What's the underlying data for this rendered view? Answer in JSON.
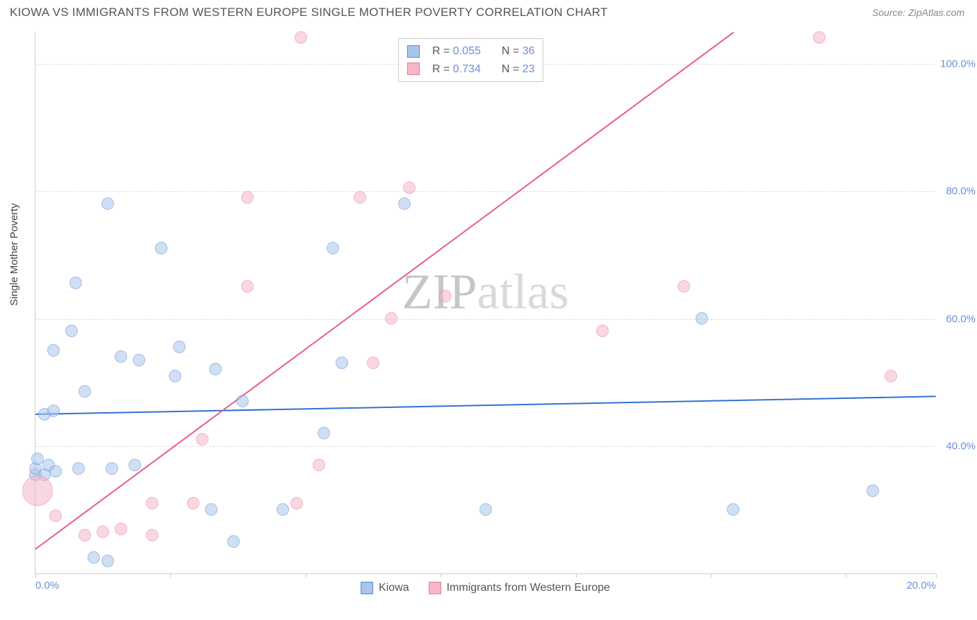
{
  "header": {
    "title": "KIOWA VS IMMIGRANTS FROM WESTERN EUROPE SINGLE MOTHER POVERTY CORRELATION CHART",
    "source": "Source: ZipAtlas.com"
  },
  "axes": {
    "y_label": "Single Mother Poverty",
    "x_min": 0,
    "x_max": 20,
    "y_min": 20,
    "y_max": 105,
    "y_ticks": [
      40,
      60,
      80,
      100
    ],
    "y_tick_labels": [
      "40.0%",
      "60.0%",
      "80.0%",
      "100.0%"
    ],
    "x_ticks": [
      0,
      3,
      6,
      9,
      12,
      15,
      18,
      20
    ],
    "x_tick_labels_shown": {
      "0": "0.0%",
      "20": "20.0%"
    }
  },
  "series": [
    {
      "name": "Kiowa",
      "fill": "#a8c5ec",
      "stroke": "#5a8ad0",
      "fill_opacity": 0.55,
      "line_color": "#2f72d4",
      "R": "0.055",
      "N": "36",
      "trend": {
        "x1": 0,
        "y1": 45.2,
        "x2": 20,
        "y2": 48.0
      },
      "marker_r": 9,
      "points": [
        {
          "x": 0.0,
          "y": 35.5
        },
        {
          "x": 0.0,
          "y": 36.5
        },
        {
          "x": 0.05,
          "y": 38
        },
        {
          "x": 0.2,
          "y": 35.5
        },
        {
          "x": 0.3,
          "y": 37
        },
        {
          "x": 0.2,
          "y": 45
        },
        {
          "x": 0.4,
          "y": 45.5
        },
        {
          "x": 0.4,
          "y": 55
        },
        {
          "x": 0.45,
          "y": 36
        },
        {
          "x": 0.8,
          "y": 58
        },
        {
          "x": 0.9,
          "y": 65.5
        },
        {
          "x": 0.95,
          "y": 36.5
        },
        {
          "x": 1.1,
          "y": 48.5
        },
        {
          "x": 1.3,
          "y": 22.5
        },
        {
          "x": 1.6,
          "y": 22
        },
        {
          "x": 1.6,
          "y": 78
        },
        {
          "x": 1.7,
          "y": 36.5
        },
        {
          "x": 1.9,
          "y": 54
        },
        {
          "x": 2.2,
          "y": 37
        },
        {
          "x": 2.3,
          "y": 53.5
        },
        {
          "x": 2.8,
          "y": 71
        },
        {
          "x": 3.1,
          "y": 51
        },
        {
          "x": 3.2,
          "y": 55.5
        },
        {
          "x": 4.0,
          "y": 52
        },
        {
          "x": 3.9,
          "y": 30
        },
        {
          "x": 4.4,
          "y": 25
        },
        {
          "x": 4.6,
          "y": 47
        },
        {
          "x": 5.5,
          "y": 30
        },
        {
          "x": 6.4,
          "y": 42
        },
        {
          "x": 6.8,
          "y": 53
        },
        {
          "x": 6.6,
          "y": 71
        },
        {
          "x": 8.2,
          "y": 78
        },
        {
          "x": 10.0,
          "y": 30
        },
        {
          "x": 14.8,
          "y": 60
        },
        {
          "x": 15.5,
          "y": 30
        },
        {
          "x": 18.6,
          "y": 33
        }
      ]
    },
    {
      "name": "Immigrants from Western Europe",
      "fill": "#f5b8c7",
      "stroke": "#e77a9a",
      "fill_opacity": 0.55,
      "line_color": "#e85a8a",
      "R": "0.734",
      "N": "23",
      "trend": {
        "x1": 0,
        "y1": 24,
        "x2": 15.5,
        "y2": 105
      },
      "marker_r": 9,
      "points": [
        {
          "x": 0.05,
          "y": 33,
          "r": 22
        },
        {
          "x": 0.45,
          "y": 29
        },
        {
          "x": 1.1,
          "y": 26
        },
        {
          "x": 1.5,
          "y": 26.5
        },
        {
          "x": 1.9,
          "y": 27
        },
        {
          "x": 2.6,
          "y": 31
        },
        {
          "x": 2.6,
          "y": 26
        },
        {
          "x": 3.5,
          "y": 31
        },
        {
          "x": 3.7,
          "y": 41
        },
        {
          "x": 4.7,
          "y": 65
        },
        {
          "x": 4.7,
          "y": 79
        },
        {
          "x": 5.8,
          "y": 31
        },
        {
          "x": 5.9,
          "y": 104
        },
        {
          "x": 6.3,
          "y": 37
        },
        {
          "x": 7.2,
          "y": 79
        },
        {
          "x": 7.5,
          "y": 53
        },
        {
          "x": 7.9,
          "y": 60
        },
        {
          "x": 8.3,
          "y": 80.5
        },
        {
          "x": 9.1,
          "y": 63.5
        },
        {
          "x": 12.6,
          "y": 58
        },
        {
          "x": 14.4,
          "y": 65
        },
        {
          "x": 17.4,
          "y": 104
        },
        {
          "x": 19.0,
          "y": 51
        }
      ]
    }
  ],
  "legend_bottom": {
    "items": [
      {
        "swatch_fill": "#a8c5ec",
        "swatch_stroke": "#5a8ad0",
        "label": "Kiowa"
      },
      {
        "swatch_fill": "#f5b8c7",
        "swatch_stroke": "#e77a9a",
        "label": "Immigrants from Western Europe"
      }
    ]
  },
  "watermark": {
    "a": "ZIP",
    "b": "atlas"
  },
  "colors": {
    "title": "#555555",
    "source": "#888888",
    "axis_text": "#6b8fd6",
    "grid": "#dddddd",
    "border": "#cccccc",
    "background": "#ffffff"
  }
}
